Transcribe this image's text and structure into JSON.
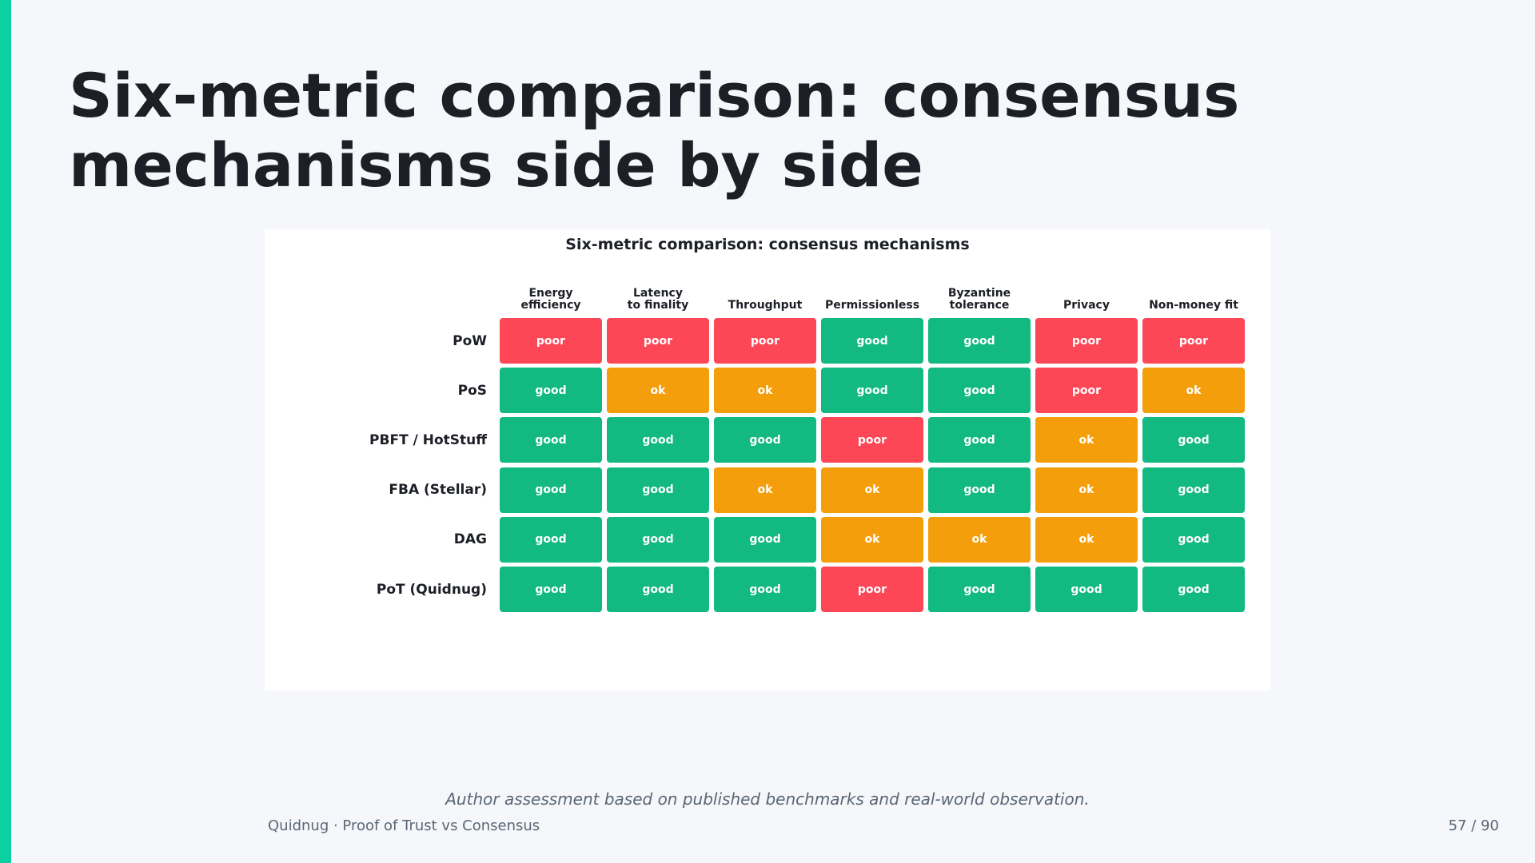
{
  "slide": {
    "title": "Six-metric comparison: consensus mechanisms side by side",
    "accent_color": "#0bd1a2",
    "footnote": "Author assessment based on published benchmarks and real-world observation.",
    "footer_left": "Quidnug  ·  Proof of Trust vs Consensus",
    "page_number": "57 / 90"
  },
  "chart_data": {
    "type": "heatmap",
    "title": "Six-metric comparison: consensus mechanisms",
    "columns": [
      [
        "Energy",
        "efficiency"
      ],
      [
        "Latency",
        "to finality"
      ],
      [
        "Throughput"
      ],
      [
        "Permissionless"
      ],
      [
        "Byzantine",
        "tolerance"
      ],
      [
        "Privacy"
      ],
      [
        "Non-money fit"
      ]
    ],
    "rows": [
      {
        "label": "PoW",
        "values": [
          "poor",
          "poor",
          "poor",
          "good",
          "good",
          "poor",
          "poor"
        ]
      },
      {
        "label": "PoS",
        "values": [
          "good",
          "ok",
          "ok",
          "good",
          "good",
          "poor",
          "ok"
        ]
      },
      {
        "label": "PBFT / HotStuff",
        "values": [
          "good",
          "good",
          "good",
          "poor",
          "good",
          "ok",
          "good"
        ]
      },
      {
        "label": "FBA (Stellar)",
        "values": [
          "good",
          "good",
          "ok",
          "ok",
          "good",
          "ok",
          "good"
        ]
      },
      {
        "label": "DAG",
        "values": [
          "good",
          "good",
          "good",
          "ok",
          "ok",
          "ok",
          "good"
        ]
      },
      {
        "label": "PoT (Quidnug)",
        "values": [
          "good",
          "good",
          "good",
          "poor",
          "good",
          "good",
          "good"
        ]
      }
    ],
    "colors": {
      "good": "#12b981",
      "ok": "#f59e0b",
      "poor": "#fd4757"
    }
  }
}
